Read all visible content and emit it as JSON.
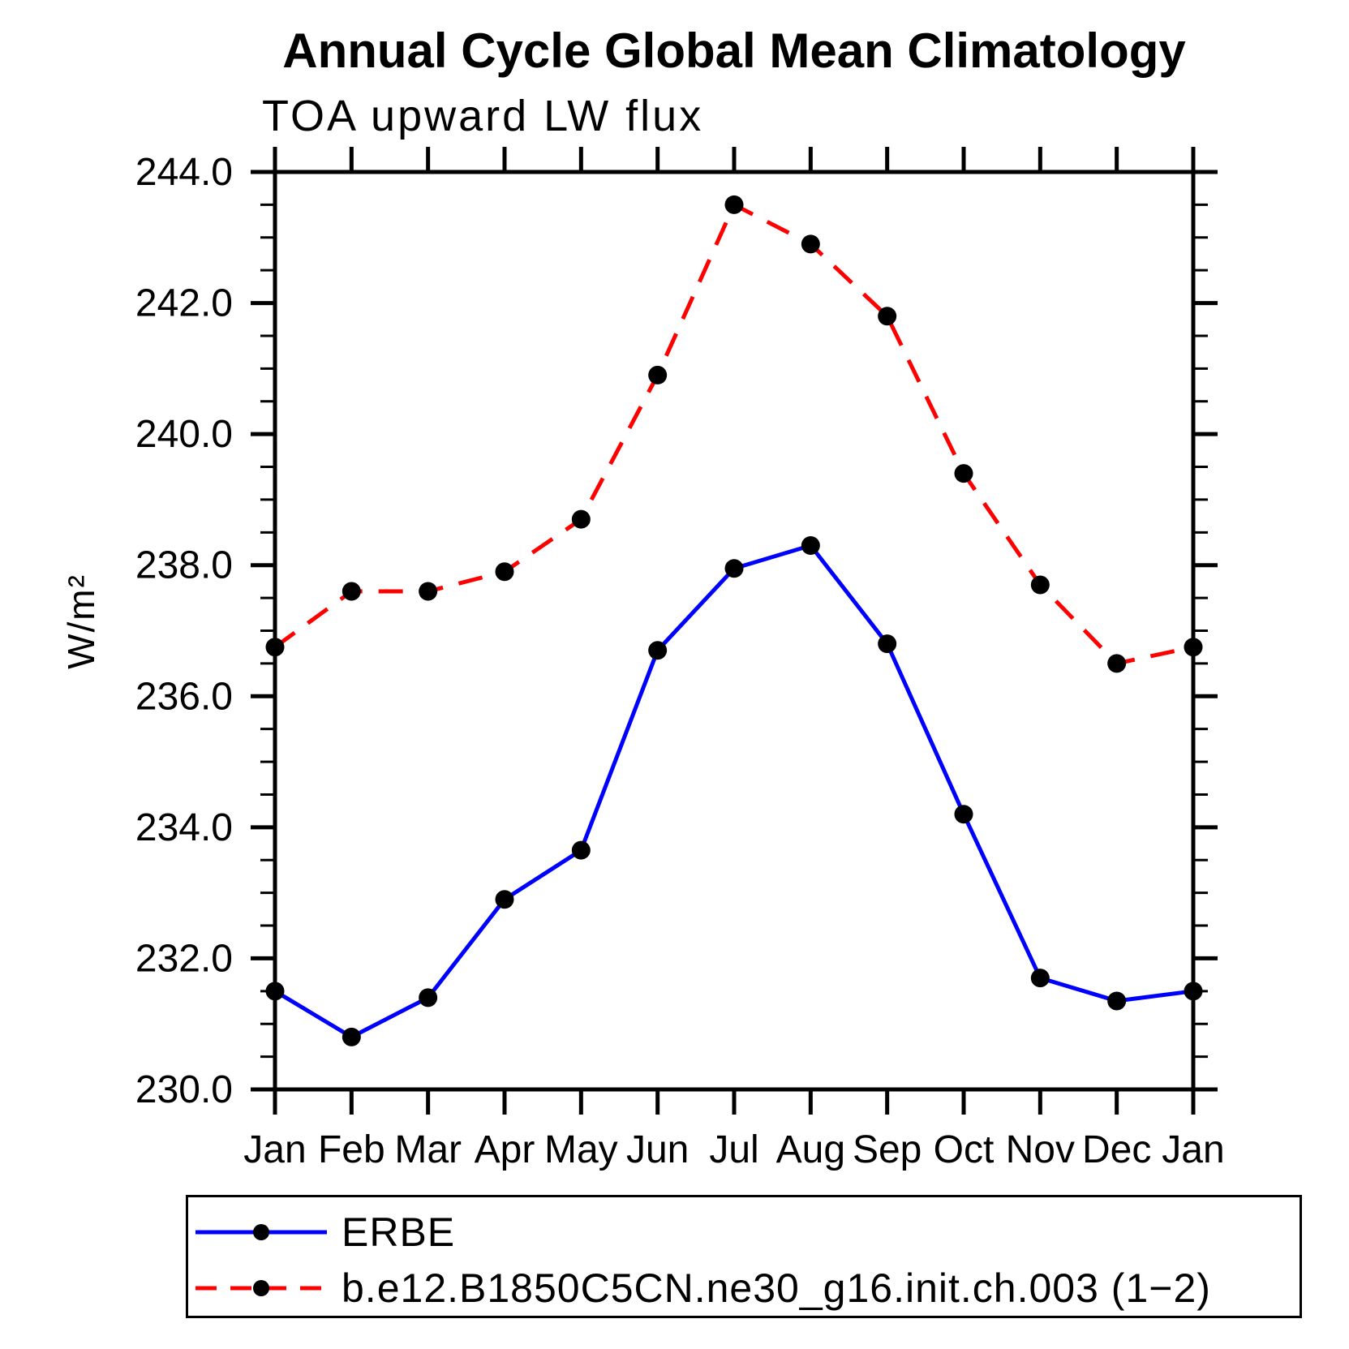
{
  "title": "Annual Cycle Global Mean Climatology",
  "subtitle": "TOA upward LW flux",
  "chart_data": {
    "type": "line",
    "x_categories": [
      "Jan",
      "Feb",
      "Mar",
      "Apr",
      "May",
      "Jun",
      "Jul",
      "Aug",
      "Sep",
      "Oct",
      "Nov",
      "Dec",
      "Jan"
    ],
    "ylabel": "W/m²",
    "ylim": [
      230.0,
      244.0
    ],
    "ytick_major_interval": 2.0,
    "ytick_minor_interval": 0.5,
    "ytick_label_format": "one_decimal",
    "grid": false,
    "legend_position": "bottom-left-box",
    "frame_color": "#000000",
    "marker_color": "#000000",
    "series": [
      {
        "name": "ERBE",
        "line_color": "#0000ff",
        "line_style": "solid",
        "marker": "filled-circle",
        "values": [
          231.5,
          230.8,
          231.4,
          232.9,
          233.65,
          236.7,
          237.95,
          238.3,
          236.8,
          234.2,
          231.7,
          231.35,
          231.5
        ]
      },
      {
        "name": "b.e12.B1850C5CN.ne30_g16.init.ch.003 (1−2)",
        "line_color": "#ff0000",
        "line_style": "dashed",
        "marker": "filled-circle",
        "values": [
          236.75,
          237.6,
          237.6,
          237.9,
          238.7,
          240.9,
          243.5,
          242.9,
          241.8,
          239.4,
          237.7,
          236.5,
          236.75
        ]
      }
    ]
  }
}
